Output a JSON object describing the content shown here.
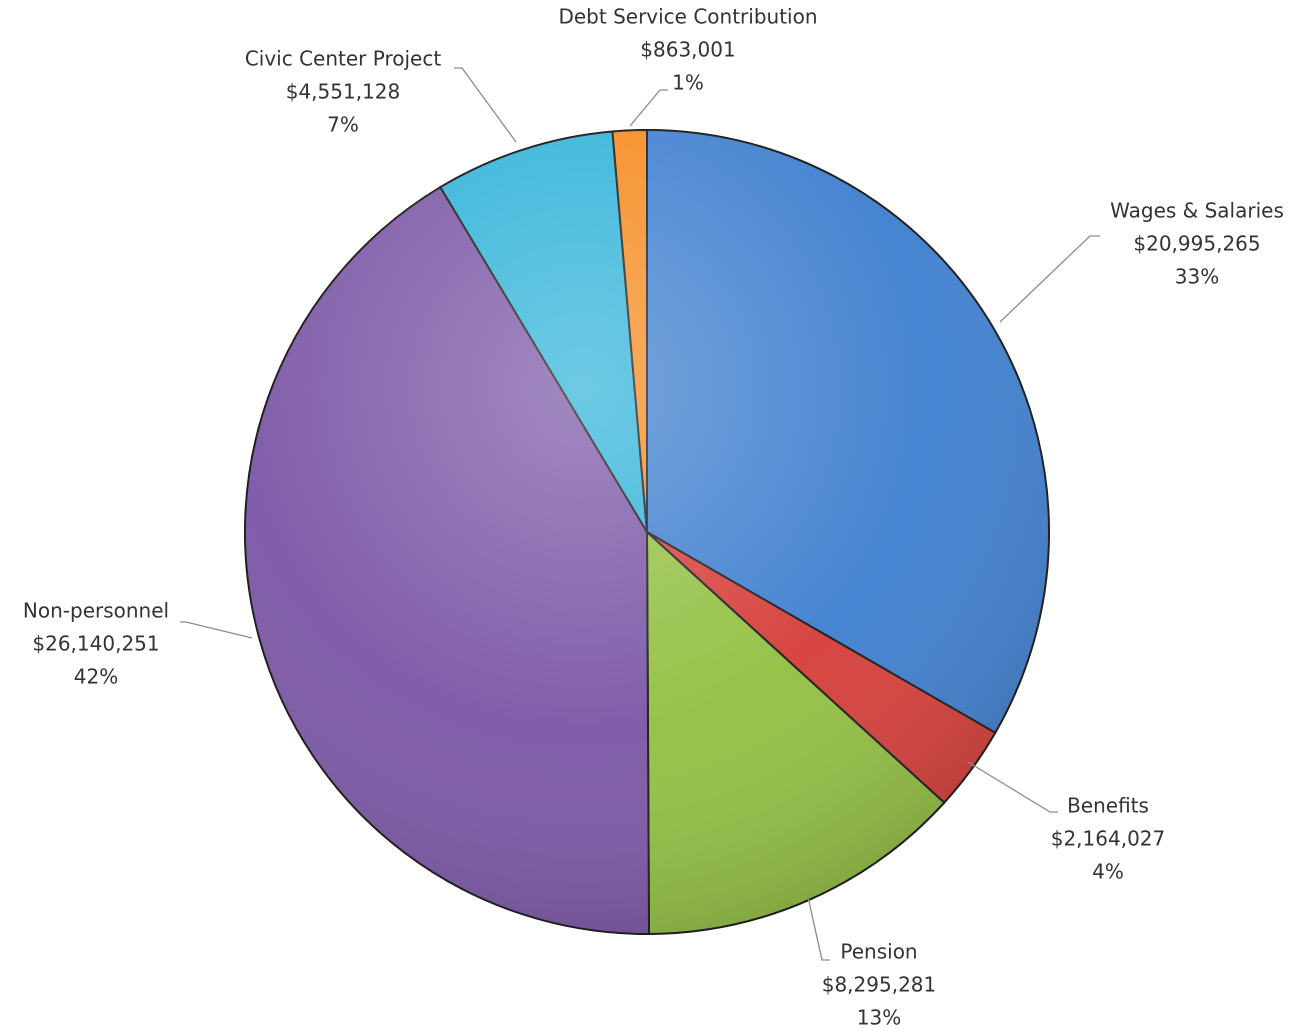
{
  "chart_data": {
    "type": "pie",
    "title": "",
    "slices": [
      {
        "label": "Wages & Salaries",
        "value": 20995265,
        "value_text": "$20,995,265",
        "percent_text": "33%",
        "color": "#3f7fcf"
      },
      {
        "label": "Benefits",
        "value": 2164027,
        "value_text": "$2,164,027",
        "percent_text": "4%",
        "color": "#d63e3a"
      },
      {
        "label": "Pension",
        "value": 8295281,
        "value_text": "$8,295,281",
        "percent_text": "13%",
        "color": "#93c043"
      },
      {
        "label": "Non-personnel",
        "value": 26140251,
        "value_text": "$26,140,251",
        "percent_text": "42%",
        "color": "#7b57a6"
      },
      {
        "label": "Civic Center Project",
        "value": 4551128,
        "value_text": "$4,551,128",
        "percent_text": "7%",
        "color": "#31b3d9"
      },
      {
        "label": "Debt Service Contribution",
        "value": 863001,
        "value_text": "$863,001",
        "percent_text": "1%",
        "color": "#f58b1f"
      }
    ],
    "start_angle": "12 o'clock",
    "direction": "clockwise",
    "legend": "none",
    "data_labels": "outside with leader lines"
  }
}
